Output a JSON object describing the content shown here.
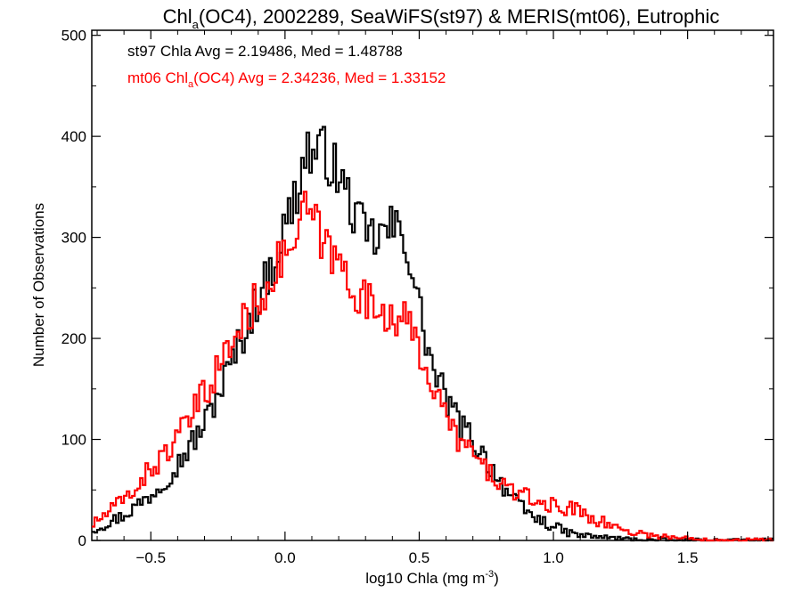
{
  "chart_data": {
    "type": "line",
    "title_main": "Chl",
    "title_sub": "a",
    "title_rest": "(OC4), 2002289, SeaWiFS(st97) & MERIS(mt06), Eutrophic",
    "xlabel_pre": "log10 Chla (mg m",
    "xlabel_sup": "-3",
    "xlabel_post": ")",
    "ylabel": "Number of Observations",
    "xlim": [
      -0.72,
      1.82
    ],
    "ylim": [
      0,
      505
    ],
    "x_ticks": [
      {
        "value": -0.5,
        "label": "−0.5"
      },
      {
        "value": 0.0,
        "label": "0.0"
      },
      {
        "value": 0.5,
        "label": "0.5"
      },
      {
        "value": 1.0,
        "label": "1.0"
      },
      {
        "value": 1.5,
        "label": "1.5"
      }
    ],
    "y_ticks": [
      {
        "value": 0,
        "label": "0"
      },
      {
        "value": 100,
        "label": "100"
      },
      {
        "value": 200,
        "label": "200"
      },
      {
        "value": 300,
        "label": "300"
      },
      {
        "value": 400,
        "label": "400"
      },
      {
        "value": 500,
        "label": "500"
      }
    ],
    "legend_placement": "top-left",
    "series": [
      {
        "id": "st97",
        "color": "#000000",
        "legend": {
          "pre": "st97 Chla Avg = 2.19486, Med = 1.48788"
        },
        "points": [
          [
            -0.72,
            10
          ],
          [
            -0.6,
            25
          ],
          [
            -0.5,
            45
          ],
          [
            -0.4,
            75
          ],
          [
            -0.3,
            115
          ],
          [
            -0.2,
            175
          ],
          [
            -0.1,
            240
          ],
          [
            -0.05,
            270
          ],
          [
            0.0,
            310
          ],
          [
            0.05,
            350
          ],
          [
            0.08,
            390
          ],
          [
            0.1,
            380
          ],
          [
            0.15,
            385
          ],
          [
            0.2,
            360
          ],
          [
            0.25,
            330
          ],
          [
            0.3,
            300
          ],
          [
            0.35,
            300
          ],
          [
            0.4,
            310
          ],
          [
            0.45,
            300
          ],
          [
            0.5,
            230
          ],
          [
            0.55,
            170
          ],
          [
            0.6,
            140
          ],
          [
            0.65,
            115
          ],
          [
            0.7,
            100
          ],
          [
            0.75,
            80
          ],
          [
            0.8,
            60
          ],
          [
            0.85,
            40
          ],
          [
            0.9,
            28
          ],
          [
            0.95,
            20
          ],
          [
            1.0,
            14
          ],
          [
            1.05,
            8
          ],
          [
            1.1,
            5
          ],
          [
            1.2,
            3
          ],
          [
            1.3,
            1
          ],
          [
            1.4,
            0.5
          ],
          [
            1.5,
            0
          ],
          [
            1.82,
            0
          ]
        ]
      },
      {
        "id": "mt06",
        "color": "#ff0000",
        "legend": {
          "pre": "mt06 Chl",
          "sub": "a",
          "post": "(OC4) Avg = 2.34236, Med = 1.33152"
        },
        "points": [
          [
            -0.72,
            15
          ],
          [
            -0.6,
            40
          ],
          [
            -0.5,
            70
          ],
          [
            -0.4,
            100
          ],
          [
            -0.3,
            145
          ],
          [
            -0.2,
            195
          ],
          [
            -0.1,
            240
          ],
          [
            -0.05,
            260
          ],
          [
            0.0,
            285
          ],
          [
            0.05,
            300
          ],
          [
            0.08,
            330
          ],
          [
            0.1,
            320
          ],
          [
            0.15,
            290
          ],
          [
            0.2,
            275
          ],
          [
            0.25,
            255
          ],
          [
            0.3,
            235
          ],
          [
            0.35,
            230
          ],
          [
            0.4,
            225
          ],
          [
            0.45,
            215
          ],
          [
            0.5,
            190
          ],
          [
            0.55,
            155
          ],
          [
            0.6,
            120
          ],
          [
            0.65,
            100
          ],
          [
            0.7,
            85
          ],
          [
            0.75,
            70
          ],
          [
            0.8,
            58
          ],
          [
            0.85,
            48
          ],
          [
            0.9,
            42
          ],
          [
            0.95,
            38
          ],
          [
            1.0,
            34
          ],
          [
            1.05,
            32
          ],
          [
            1.1,
            30
          ],
          [
            1.15,
            22
          ],
          [
            1.2,
            16
          ],
          [
            1.3,
            8
          ],
          [
            1.4,
            4
          ],
          [
            1.5,
            2
          ],
          [
            1.6,
            1
          ],
          [
            1.82,
            0
          ]
        ]
      }
    ]
  }
}
